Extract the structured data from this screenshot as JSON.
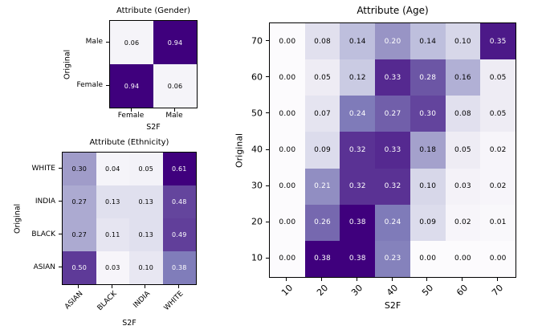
{
  "figure": {
    "background": "#ffffff",
    "spine_color": "#000000"
  },
  "colormap": {
    "name": "Purples",
    "stops": [
      "#fcfbfd",
      "#efedf5",
      "#dadaeb",
      "#bcbddc",
      "#9e9ac8",
      "#807dba",
      "#6a51a3",
      "#54278f",
      "#3f007d"
    ]
  },
  "annotation": {
    "light": "#ffffff",
    "dark": "#000000",
    "white_text_threshold": 0.5
  },
  "chart_data": [
    {
      "id": "gender",
      "type": "heatmap",
      "title": "Attribute (Gender)",
      "xlabel": "S2F",
      "ylabel": "Original",
      "row_labels": [
        "Male",
        "Female"
      ],
      "col_labels": [
        "Female",
        "Male"
      ],
      "values": [
        [
          0.06,
          0.94
        ],
        [
          0.94,
          0.06
        ]
      ],
      "x_tick_rotation": 0,
      "value_format_decimals": 2
    },
    {
      "id": "ethnicity",
      "type": "heatmap",
      "title": "Attribute (Ethnicity)",
      "xlabel": "S2F",
      "ylabel": "Original",
      "row_labels": [
        "WHITE",
        "INDIA",
        "BLACK",
        "ASIAN"
      ],
      "col_labels": [
        "ASIAN",
        "BLACK",
        "INDIA",
        "WHITE"
      ],
      "values": [
        [
          0.3,
          0.04,
          0.05,
          0.61
        ],
        [
          0.27,
          0.13,
          0.13,
          0.48
        ],
        [
          0.27,
          0.11,
          0.13,
          0.49
        ],
        [
          0.5,
          0.03,
          0.1,
          0.38
        ]
      ],
      "x_tick_rotation": 45,
      "value_format_decimals": 2
    },
    {
      "id": "age",
      "type": "heatmap",
      "title": "Attribute (Age)",
      "xlabel": "S2F",
      "ylabel": "Original",
      "row_labels": [
        "70",
        "60",
        "50",
        "40",
        "30",
        "20",
        "10"
      ],
      "col_labels": [
        "10",
        "20",
        "30",
        "40",
        "50",
        "60",
        "70"
      ],
      "values": [
        [
          0.0,
          0.08,
          0.14,
          0.2,
          0.14,
          0.1,
          0.35
        ],
        [
          0.0,
          0.05,
          0.12,
          0.33,
          0.28,
          0.16,
          0.05
        ],
        [
          0.0,
          0.07,
          0.24,
          0.27,
          0.3,
          0.08,
          0.05
        ],
        [
          0.0,
          0.09,
          0.32,
          0.33,
          0.18,
          0.05,
          0.02
        ],
        [
          0.0,
          0.21,
          0.32,
          0.32,
          0.1,
          0.03,
          0.02
        ],
        [
          0.0,
          0.26,
          0.38,
          0.24,
          0.09,
          0.02,
          0.01
        ],
        [
          0.0,
          0.38,
          0.38,
          0.23,
          0.0,
          0.0,
          0.0
        ]
      ],
      "x_tick_rotation": 45,
      "value_format_decimals": 2
    }
  ]
}
